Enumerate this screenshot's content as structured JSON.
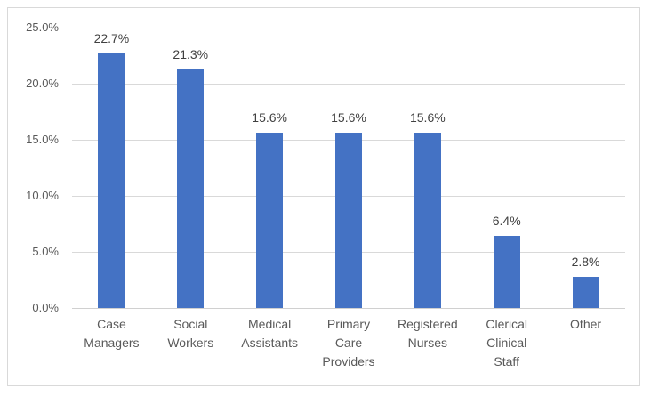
{
  "chart_data": {
    "type": "bar",
    "title": "",
    "xlabel": "",
    "ylabel": "",
    "categories": [
      "Case Managers",
      "Social Workers",
      "Medical Assistants",
      "Primary Care Providers",
      "Registered Nurses",
      "Clerical Clinical Staff",
      "Other"
    ],
    "values": [
      22.7,
      21.3,
      15.6,
      15.6,
      15.6,
      6.4,
      2.8
    ],
    "data_labels": [
      "22.7%",
      "21.3%",
      "15.6%",
      "15.6%",
      "15.6%",
      "6.4%",
      "2.8%"
    ],
    "ylim": [
      0,
      25
    ],
    "y_tick_step": 5,
    "y_ticks": [
      "0.0%",
      "5.0%",
      "10.0%",
      "15.0%",
      "20.0%",
      "25.0%"
    ],
    "grid": true,
    "legend": false,
    "colors": {
      "bar": "#4472C4",
      "gridline": "#d9d9d9",
      "axis_line": "#d0d0d0",
      "frame_border": "#d9d9d9",
      "tick_label": "#595959",
      "data_label": "#404040",
      "category_label": "#595959",
      "background": "#ffffff"
    }
  }
}
